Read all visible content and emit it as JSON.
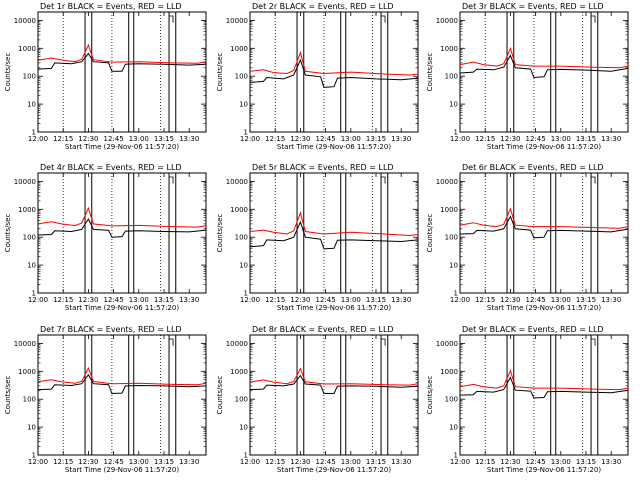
{
  "chart_data": {
    "type": "line",
    "panel_titles": [
      "Det 1r BLACK = Events, RED = LLD",
      "Det 2r BLACK = Events, RED = LLD",
      "Det 3r BLACK = Events, RED = LLD",
      "Det 4r BLACK = Events, RED = LLD",
      "Det 5r BLACK = Events, RED = LLD",
      "Det 6r BLACK = Events, RED = LLD",
      "Det 7r BLACK = Events, RED = LLD",
      "Det 8r BLACK = Events, RED = LLD",
      "Det 9r BLACK = Events, RED = LLD"
    ],
    "xlabel": "Start Time (29-Nov-06 11:57:20)",
    "ylabel": "Counts/sec",
    "x_unit": "minutes after 12:00",
    "xlim": [
      0,
      100
    ],
    "ylim": [
      1,
      20000
    ],
    "yscale": "log",
    "x_ticks": [
      0,
      15,
      30,
      45,
      60,
      75,
      90
    ],
    "x_tick_labels": [
      "12:00",
      "12:15",
      "12:30",
      "12:45",
      "13:00",
      "13:15",
      "13:30"
    ],
    "y_ticks": [
      1,
      10,
      100,
      1000,
      10000
    ],
    "y_tick_labels": [
      "1",
      "10",
      "100",
      "1000",
      "10000"
    ],
    "vertical_lines_solid": [
      28,
      32,
      54,
      57,
      78,
      82
    ],
    "vertical_lines_dotted": [
      15,
      44,
      73
    ],
    "series_colors": {
      "events": "#000000",
      "lld": "#ff0000"
    },
    "panels": [
      {
        "events": [
          [
            0,
            180
          ],
          [
            8,
            190
          ],
          [
            10,
            300
          ],
          [
            20,
            280
          ],
          [
            26,
            330
          ],
          [
            30,
            650
          ],
          [
            33,
            330
          ],
          [
            42,
            300
          ],
          [
            44,
            150
          ],
          [
            50,
            150
          ],
          [
            52,
            270
          ],
          [
            60,
            280
          ],
          [
            75,
            270
          ],
          [
            90,
            250
          ],
          [
            100,
            270
          ]
        ],
        "lld": [
          [
            0,
            370
          ],
          [
            8,
            450
          ],
          [
            14,
            380
          ],
          [
            22,
            330
          ],
          [
            26,
            400
          ],
          [
            30,
            1300
          ],
          [
            33,
            390
          ],
          [
            44,
            320
          ],
          [
            60,
            330
          ],
          [
            80,
            300
          ],
          [
            95,
            290
          ],
          [
            100,
            330
          ]
        ]
      },
      {
        "events": [
          [
            0,
            60
          ],
          [
            8,
            65
          ],
          [
            10,
            90
          ],
          [
            20,
            80
          ],
          [
            26,
            110
          ],
          [
            30,
            380
          ],
          [
            33,
            110
          ],
          [
            42,
            95
          ],
          [
            44,
            40
          ],
          [
            50,
            42
          ],
          [
            52,
            85
          ],
          [
            60,
            90
          ],
          [
            75,
            80
          ],
          [
            90,
            75
          ],
          [
            100,
            85
          ]
        ],
        "lld": [
          [
            0,
            150
          ],
          [
            8,
            170
          ],
          [
            14,
            135
          ],
          [
            22,
            125
          ],
          [
            26,
            160
          ],
          [
            30,
            700
          ],
          [
            33,
            150
          ],
          [
            44,
            125
          ],
          [
            60,
            140
          ],
          [
            80,
            120
          ],
          [
            95,
            110
          ],
          [
            100,
            120
          ]
        ]
      },
      {
        "events": [
          [
            0,
            130
          ],
          [
            8,
            140
          ],
          [
            10,
            180
          ],
          [
            20,
            170
          ],
          [
            26,
            210
          ],
          [
            30,
            550
          ],
          [
            33,
            200
          ],
          [
            42,
            180
          ],
          [
            44,
            90
          ],
          [
            50,
            95
          ],
          [
            52,
            170
          ],
          [
            60,
            175
          ],
          [
            75,
            165
          ],
          [
            90,
            150
          ],
          [
            100,
            190
          ]
        ],
        "lld": [
          [
            0,
            260
          ],
          [
            8,
            320
          ],
          [
            14,
            260
          ],
          [
            22,
            230
          ],
          [
            26,
            280
          ],
          [
            30,
            1000
          ],
          [
            33,
            260
          ],
          [
            44,
            230
          ],
          [
            60,
            230
          ],
          [
            80,
            210
          ],
          [
            95,
            200
          ],
          [
            100,
            230
          ]
        ]
      },
      {
        "events": [
          [
            0,
            120
          ],
          [
            8,
            125
          ],
          [
            10,
            170
          ],
          [
            20,
            160
          ],
          [
            26,
            190
          ],
          [
            30,
            450
          ],
          [
            33,
            190
          ],
          [
            42,
            175
          ],
          [
            44,
            100
          ],
          [
            50,
            105
          ],
          [
            52,
            165
          ],
          [
            60,
            170
          ],
          [
            75,
            160
          ],
          [
            90,
            155
          ],
          [
            100,
            180
          ]
        ],
        "lld": [
          [
            0,
            300
          ],
          [
            8,
            360
          ],
          [
            14,
            300
          ],
          [
            22,
            260
          ],
          [
            26,
            320
          ],
          [
            30,
            1100
          ],
          [
            33,
            300
          ],
          [
            44,
            255
          ],
          [
            60,
            265
          ],
          [
            80,
            240
          ],
          [
            95,
            230
          ],
          [
            100,
            260
          ]
        ]
      },
      {
        "events": [
          [
            0,
            45
          ],
          [
            8,
            50
          ],
          [
            10,
            80
          ],
          [
            20,
            75
          ],
          [
            26,
            100
          ],
          [
            30,
            350
          ],
          [
            33,
            100
          ],
          [
            42,
            85
          ],
          [
            44,
            38
          ],
          [
            50,
            40
          ],
          [
            52,
            78
          ],
          [
            60,
            80
          ],
          [
            75,
            75
          ],
          [
            90,
            70
          ],
          [
            100,
            80
          ]
        ],
        "lld": [
          [
            0,
            160
          ],
          [
            8,
            180
          ],
          [
            14,
            150
          ],
          [
            22,
            130
          ],
          [
            26,
            170
          ],
          [
            30,
            750
          ],
          [
            33,
            160
          ],
          [
            44,
            130
          ],
          [
            60,
            150
          ],
          [
            80,
            130
          ],
          [
            95,
            115
          ],
          [
            100,
            125
          ]
        ]
      },
      {
        "events": [
          [
            0,
            130
          ],
          [
            8,
            135
          ],
          [
            10,
            175
          ],
          [
            20,
            165
          ],
          [
            26,
            200
          ],
          [
            30,
            550
          ],
          [
            33,
            200
          ],
          [
            42,
            180
          ],
          [
            44,
            95
          ],
          [
            50,
            100
          ],
          [
            52,
            170
          ],
          [
            60,
            175
          ],
          [
            75,
            165
          ],
          [
            90,
            155
          ],
          [
            100,
            195
          ]
        ],
        "lld": [
          [
            0,
            270
          ],
          [
            8,
            330
          ],
          [
            14,
            270
          ],
          [
            22,
            240
          ],
          [
            26,
            290
          ],
          [
            30,
            1050
          ],
          [
            33,
            270
          ],
          [
            44,
            240
          ],
          [
            60,
            240
          ],
          [
            80,
            220
          ],
          [
            95,
            210
          ],
          [
            100,
            240
          ]
        ]
      },
      {
        "events": [
          [
            0,
            220
          ],
          [
            8,
            230
          ],
          [
            10,
            330
          ],
          [
            20,
            310
          ],
          [
            26,
            360
          ],
          [
            30,
            750
          ],
          [
            33,
            360
          ],
          [
            42,
            330
          ],
          [
            44,
            160
          ],
          [
            50,
            165
          ],
          [
            52,
            300
          ],
          [
            60,
            310
          ],
          [
            75,
            300
          ],
          [
            90,
            280
          ],
          [
            100,
            300
          ]
        ],
        "lld": [
          [
            0,
            420
          ],
          [
            8,
            500
          ],
          [
            14,
            420
          ],
          [
            22,
            370
          ],
          [
            26,
            440
          ],
          [
            30,
            1300
          ],
          [
            33,
            430
          ],
          [
            44,
            360
          ],
          [
            60,
            370
          ],
          [
            80,
            340
          ],
          [
            95,
            330
          ],
          [
            100,
            370
          ]
        ]
      },
      {
        "events": [
          [
            0,
            220
          ],
          [
            8,
            230
          ],
          [
            10,
            320
          ],
          [
            20,
            300
          ],
          [
            26,
            350
          ],
          [
            30,
            700
          ],
          [
            33,
            350
          ],
          [
            42,
            320
          ],
          [
            44,
            160
          ],
          [
            50,
            160
          ],
          [
            52,
            290
          ],
          [
            60,
            300
          ],
          [
            75,
            290
          ],
          [
            90,
            270
          ],
          [
            100,
            290
          ]
        ],
        "lld": [
          [
            0,
            410
          ],
          [
            8,
            490
          ],
          [
            14,
            410
          ],
          [
            22,
            360
          ],
          [
            26,
            430
          ],
          [
            30,
            1250
          ],
          [
            33,
            420
          ],
          [
            44,
            350
          ],
          [
            60,
            360
          ],
          [
            80,
            330
          ],
          [
            95,
            320
          ],
          [
            100,
            360
          ]
        ]
      },
      {
        "events": [
          [
            0,
            140
          ],
          [
            8,
            145
          ],
          [
            10,
            190
          ],
          [
            20,
            180
          ],
          [
            26,
            220
          ],
          [
            30,
            600
          ],
          [
            33,
            210
          ],
          [
            42,
            195
          ],
          [
            44,
            110
          ],
          [
            50,
            115
          ],
          [
            52,
            185
          ],
          [
            60,
            190
          ],
          [
            75,
            180
          ],
          [
            90,
            170
          ],
          [
            100,
            210
          ]
        ],
        "lld": [
          [
            0,
            280
          ],
          [
            8,
            340
          ],
          [
            14,
            280
          ],
          [
            22,
            250
          ],
          [
            26,
            300
          ],
          [
            30,
            1050
          ],
          [
            33,
            280
          ],
          [
            44,
            250
          ],
          [
            60,
            250
          ],
          [
            80,
            230
          ],
          [
            95,
            220
          ],
          [
            100,
            250
          ]
        ]
      }
    ]
  }
}
